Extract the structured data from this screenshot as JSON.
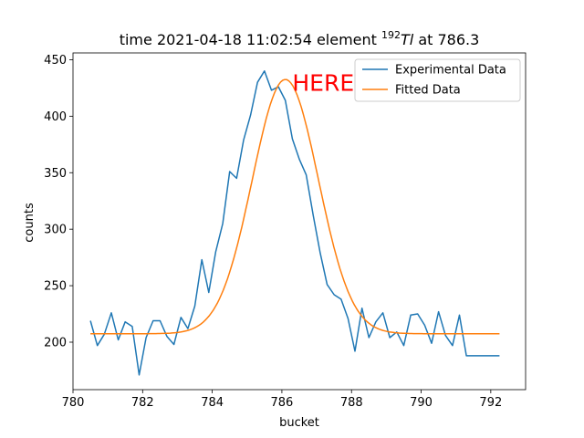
{
  "chart_data": {
    "type": "line",
    "title_parts": {
      "prefix": "time 2021-04-18 11:02:54 element ",
      "isotope_mass": "192",
      "element_symbol": "Tl",
      "suffix": " at 786.3"
    },
    "xlabel": "bucket",
    "ylabel": "counts",
    "xlim": [
      780,
      793
    ],
    "ylim": [
      158,
      456
    ],
    "xticks": [
      780,
      782,
      784,
      786,
      788,
      790,
      792
    ],
    "yticks": [
      200,
      250,
      300,
      350,
      400,
      450
    ],
    "grid": false,
    "legend_position": "top-right",
    "annotation": {
      "text": "HERE",
      "x": 786.3,
      "y": 429,
      "color": "#ff0000"
    },
    "series": [
      {
        "name": "Experimental Data",
        "color": "#1f77b4",
        "x": [
          780.5,
          780.7,
          780.9,
          781.1,
          781.3,
          781.5,
          781.7,
          781.9,
          782.1,
          782.3,
          782.5,
          782.7,
          782.9,
          783.1,
          783.3,
          783.5,
          783.7,
          783.9,
          784.1,
          784.3,
          784.5,
          784.7,
          784.9,
          785.1,
          785.3,
          785.5,
          785.7,
          785.9,
          786.1,
          786.3,
          786.5,
          786.7,
          786.9,
          787.1,
          787.3,
          787.5,
          787.7,
          787.9,
          788.1,
          788.3,
          788.5,
          788.7,
          788.9,
          789.1,
          789.3,
          789.5,
          789.7,
          789.9,
          790.1,
          790.3,
          790.5,
          790.7,
          790.9,
          791.1,
          791.3,
          791.5,
          791.7,
          791.9,
          792.1,
          792.25
        ],
        "y": [
          219,
          197,
          207,
          226,
          202,
          218,
          214,
          171,
          204,
          219,
          219,
          205,
          198,
          222,
          212,
          232,
          273,
          244,
          280,
          305,
          351,
          345,
          379,
          401,
          430,
          440,
          423,
          426,
          414,
          380,
          362,
          348,
          312,
          279,
          251,
          242,
          238,
          221,
          192,
          230,
          204,
          218,
          226,
          204,
          209,
          197,
          224,
          225,
          215,
          199,
          227,
          206,
          197,
          224,
          188,
          188,
          188,
          188,
          188,
          188
        ]
      },
      {
        "name": "Fitted Data",
        "color": "#ff7f0e",
        "fit": {
          "amplitude": 225,
          "center": 786.1,
          "sigma": 0.95,
          "baseline": 207.5,
          "x_start": 780.5,
          "x_end": 792.25
        }
      }
    ]
  }
}
